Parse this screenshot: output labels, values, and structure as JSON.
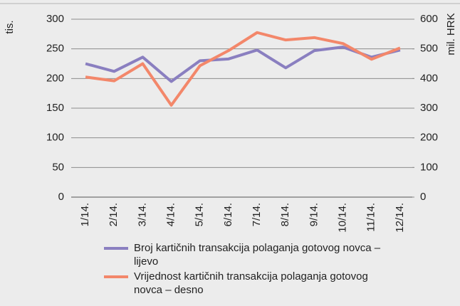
{
  "chart_data": {
    "type": "line",
    "y_label": "tis.",
    "y2_label": "mil. HRK",
    "categories": [
      "1/14.",
      "2/14.",
      "3/14.",
      "4/14.",
      "5/14.",
      "6/14.",
      "7/14.",
      "8/14.",
      "9/14.",
      "10/14.",
      "11/14.",
      "12/14."
    ],
    "series": [
      {
        "name": "Broj kartičnih transakcija polaganja gotovog novca – lijevo",
        "color": "#8a7fc0",
        "values": [
          225,
          212,
          236,
          195,
          230,
          233,
          248,
          218,
          247,
          253,
          236,
          248
        ]
      },
      {
        "name": "Vrijednost kartičnih transakcija polaganja gotovog novca – desno",
        "color": "#f3876a",
        "axis": "y2",
        "values": [
          405,
          392,
          450,
          310,
          443,
          494,
          555,
          530,
          538,
          518,
          465,
          503
        ]
      }
    ],
    "ylim": [
      0,
      300
    ],
    "yticks": [
      0,
      50,
      100,
      150,
      200,
      250,
      300
    ],
    "y2lim": [
      0,
      600
    ],
    "y2ticks": [
      0,
      100,
      200,
      300,
      400,
      500,
      600
    ],
    "grid": true
  }
}
